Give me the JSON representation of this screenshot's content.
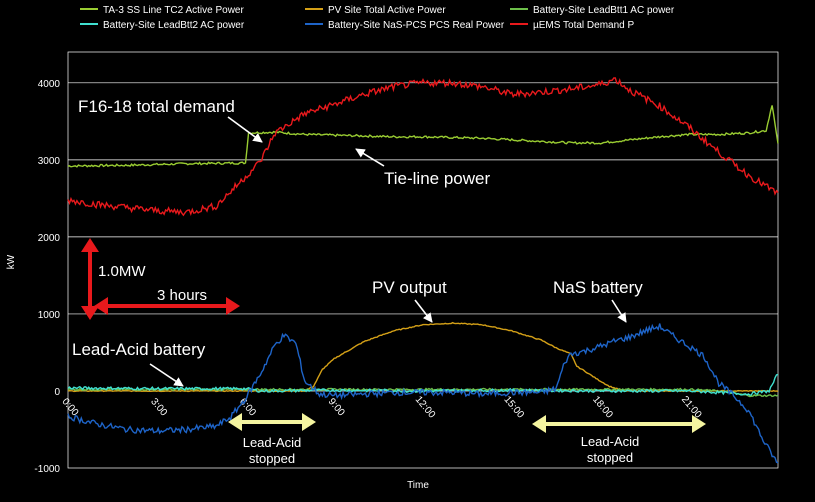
{
  "chart_data": {
    "type": "line",
    "xlabel": "Time",
    "ylabel": "kW",
    "xlim": [
      0,
      24
    ],
    "ylim": [
      -1000,
      4400
    ],
    "x_ticks": [
      {
        "x": 0,
        "label": "0:00"
      },
      {
        "x": 3,
        "label": "3:00"
      },
      {
        "x": 6,
        "label": "6:00"
      },
      {
        "x": 9,
        "label": "9:00"
      },
      {
        "x": 12,
        "label": "12:00"
      },
      {
        "x": 15,
        "label": "15:00"
      },
      {
        "x": 18,
        "label": "18:00"
      },
      {
        "x": 21,
        "label": "21:00"
      }
    ],
    "y_ticks": [
      {
        "y": -1000,
        "label": "-1000"
      },
      {
        "y": 0,
        "label": "0"
      },
      {
        "y": 1000,
        "label": "1000"
      },
      {
        "y": 2000,
        "label": "2000"
      },
      {
        "y": 3000,
        "label": "3000"
      },
      {
        "y": 4000,
        "label": "4000"
      }
    ],
    "grid": true,
    "legend_position": "top",
    "series": [
      {
        "name": "TA-3 SS Line TC2 Active Power",
        "color": "#9ACD32",
        "x": [
          0,
          2,
          4,
          6,
          6.1,
          7,
          8,
          9,
          10,
          11,
          12,
          13,
          14,
          15,
          16,
          17,
          18,
          19,
          20,
          21,
          22,
          23,
          23.6,
          23.8,
          24
        ],
        "y": [
          2920,
          2930,
          2950,
          2960,
          3350,
          3360,
          3330,
          3320,
          3310,
          3300,
          3300,
          3290,
          3280,
          3260,
          3240,
          3220,
          3220,
          3260,
          3300,
          3330,
          3330,
          3350,
          3380,
          3720,
          3200
        ]
      },
      {
        "name": "PV Site Total Active Power",
        "color": "#D4A017",
        "x": [
          0,
          8,
          8.3,
          8.6,
          9,
          10,
          11,
          12,
          13,
          14,
          15,
          16,
          16.5,
          17,
          17.2,
          17.5,
          17.9,
          18.3,
          18.8,
          24
        ],
        "y": [
          0,
          0,
          60,
          280,
          420,
          640,
          780,
          860,
          880,
          860,
          780,
          660,
          560,
          480,
          320,
          250,
          150,
          60,
          0,
          0
        ]
      },
      {
        "name": "Battery-Site LeadBtt1 AC power",
        "color": "#6DBF4A",
        "x": [
          0,
          21,
          22,
          23,
          24
        ],
        "y": [
          20,
          20,
          0,
          -60,
          -60
        ]
      },
      {
        "name": "Battery-Site LeadBtt2 AC power",
        "color": "#40E0D0",
        "x": [
          0,
          3,
          6,
          6.5,
          9,
          12,
          15,
          18,
          21,
          23,
          23.7,
          24
        ],
        "y": [
          40,
          30,
          30,
          0,
          10,
          0,
          10,
          0,
          0,
          -40,
          0,
          230
        ]
      },
      {
        "name": "Battery-Site NaS-PCS PCS Real Power",
        "color": "#1E64C8",
        "x": [
          0,
          1,
          2,
          3,
          4,
          5,
          5.5,
          6,
          6.5,
          7,
          7.3,
          7.7,
          8,
          8.5,
          9,
          10,
          11,
          12,
          13,
          14,
          15,
          16,
          16.5,
          16.8,
          17,
          17.5,
          18,
          18.5,
          19,
          19.5,
          20,
          20.5,
          21,
          21.5,
          22,
          22.5,
          23,
          23.5,
          24
        ],
        "y": [
          -330,
          -430,
          -500,
          -520,
          -500,
          -460,
          -340,
          -100,
          220,
          600,
          720,
          620,
          130,
          -40,
          -60,
          -40,
          -20,
          -20,
          -20,
          -40,
          -20,
          -20,
          30,
          380,
          480,
          520,
          580,
          650,
          700,
          780,
          840,
          700,
          580,
          450,
          100,
          -60,
          -250,
          -640,
          -950
        ]
      },
      {
        "name": "µEMS Total Demand P",
        "color": "#E8191C",
        "x": [
          0,
          1,
          2,
          3,
          4,
          5,
          6,
          6.5,
          7,
          8,
          9,
          10,
          11,
          12,
          13,
          14,
          15,
          16,
          17,
          18,
          18.5,
          19,
          20,
          21,
          22,
          23,
          24
        ],
        "y": [
          2480,
          2420,
          2380,
          2340,
          2320,
          2400,
          2780,
          2980,
          3350,
          3600,
          3720,
          3850,
          3950,
          4000,
          4000,
          3950,
          3850,
          3880,
          3920,
          3980,
          4050,
          3900,
          3700,
          3420,
          3100,
          2800,
          2560
        ]
      }
    ],
    "annotations": [
      {
        "text": "F16-18 total demand"
      },
      {
        "text": "Tie-line power"
      },
      {
        "text": "PV output"
      },
      {
        "text": "NaS battery"
      },
      {
        "text": "Lead-Acid battery"
      },
      {
        "text": "1.0MW"
      },
      {
        "text": "3 hours"
      },
      {
        "text": "Lead-Acid stopped"
      },
      {
        "text": "Lead-Acid stopped"
      }
    ]
  }
}
